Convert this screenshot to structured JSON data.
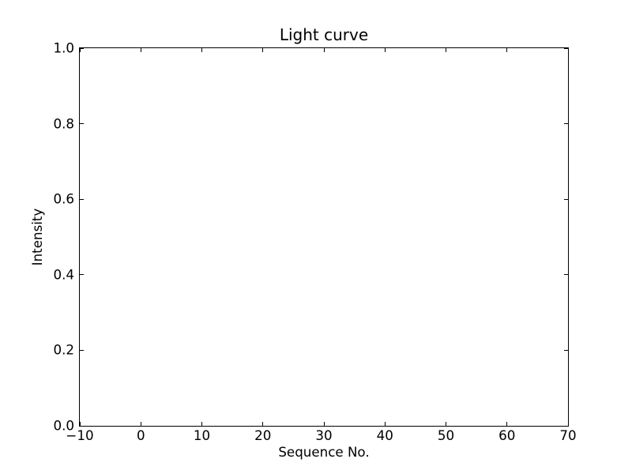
{
  "chart_data": {
    "type": "line",
    "title": "Light curve",
    "xlabel": "Sequence No.",
    "ylabel": "Intensity",
    "xlim": [
      -10,
      70
    ],
    "ylim": [
      0.0,
      1.0
    ],
    "x_ticks": [
      -10,
      0,
      10,
      20,
      30,
      40,
      50,
      60,
      70
    ],
    "x_tick_labels": [
      "−10",
      "0",
      "10",
      "20",
      "30",
      "40",
      "50",
      "60",
      "70"
    ],
    "y_ticks": [
      0.0,
      0.2,
      0.4,
      0.6,
      0.8,
      1.0
    ],
    "y_tick_labels": [
      "0.0",
      "0.2",
      "0.4",
      "0.6",
      "0.8",
      "1.0"
    ],
    "series": [],
    "grid": false,
    "legend": null,
    "tick_direction": "in",
    "ticks_on_all_sides": true,
    "axes_color": "#000000",
    "text_color": "#000000",
    "background_color": "#ffffff"
  }
}
